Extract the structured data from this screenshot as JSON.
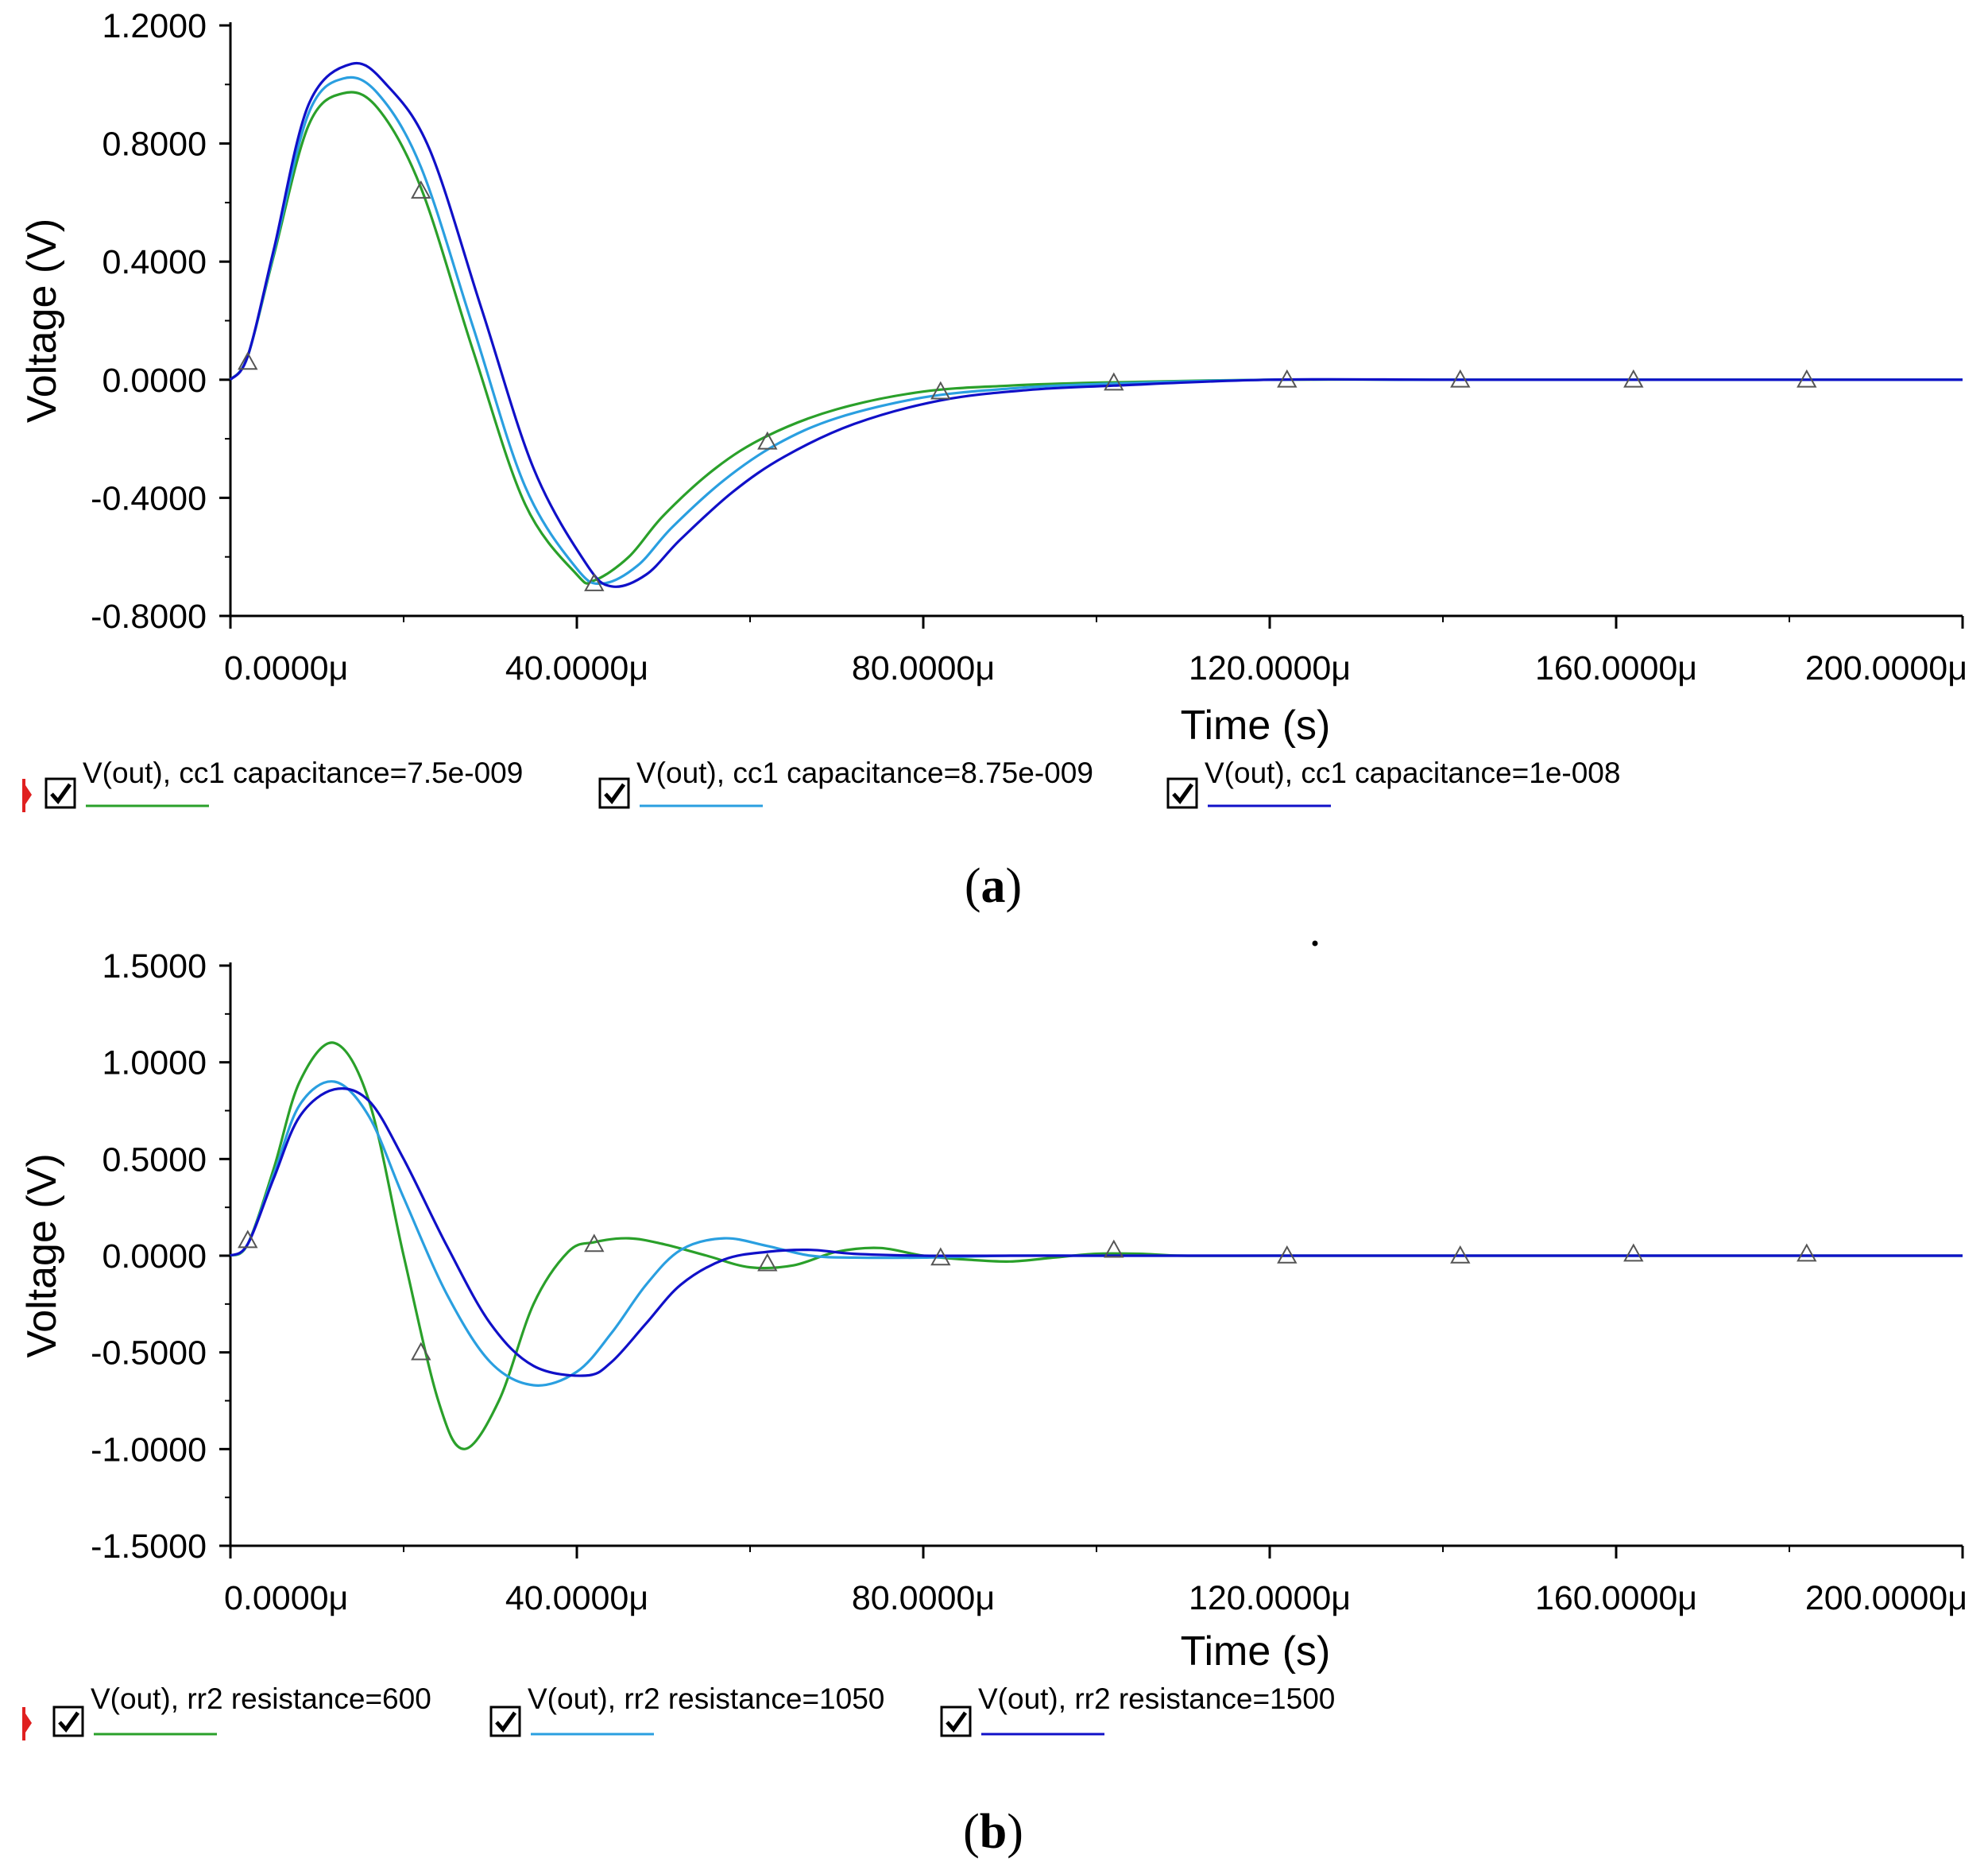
{
  "chart_data": [
    {
      "id": "a",
      "type": "line",
      "caption": "a",
      "xlabel": "Time (s)",
      "ylabel": "Voltage (V)",
      "xlim": [
        0,
        200
      ],
      "ylim": [
        -0.8,
        1.2
      ],
      "x_unit_suffix": "μ",
      "xticks": [
        0,
        40,
        80,
        120,
        160,
        200
      ],
      "xtick_labels": [
        "0.0000μ",
        "40.0000μ",
        "80.0000μ",
        "120.0000μ",
        "160.0000μ",
        "200.0000μ"
      ],
      "yticks": [
        1.2,
        0.8,
        0.4,
        0.0,
        -0.4,
        -0.8
      ],
      "ytick_labels": [
        "1.2000",
        "0.8000",
        "0.4000",
        "0.0000",
        "-0.4000",
        "-0.8000"
      ],
      "series": [
        {
          "name": "V(out), cc1 capacitance=7.5e-009",
          "color": "#2aa02a",
          "x": [
            0,
            2,
            5,
            9,
            13,
            17,
            22,
            28,
            34,
            40,
            42,
            46,
            50,
            56,
            62,
            70,
            80,
            90,
            100,
            120,
            140,
            160,
            180,
            200
          ],
          "y": [
            0,
            0.08,
            0.42,
            0.86,
            0.97,
            0.92,
            0.65,
            0.1,
            -0.42,
            -0.66,
            -0.68,
            -0.6,
            -0.46,
            -0.3,
            -0.19,
            -0.1,
            -0.04,
            -0.02,
            -0.01,
            0,
            0,
            0,
            0,
            0
          ]
        },
        {
          "name": "V(out), cc1 capacitance=8.75e-009",
          "color": "#2a9fe0",
          "x": [
            0,
            2,
            5,
            9,
            13,
            17,
            22,
            28,
            34,
            40,
            43,
            47,
            51,
            57,
            63,
            70,
            80,
            90,
            100,
            120,
            140,
            160,
            180,
            200
          ],
          "y": [
            0,
            0.08,
            0.43,
            0.9,
            1.02,
            0.97,
            0.72,
            0.18,
            -0.36,
            -0.64,
            -0.69,
            -0.63,
            -0.5,
            -0.34,
            -0.22,
            -0.13,
            -0.06,
            -0.03,
            -0.015,
            0,
            0,
            0,
            0,
            0
          ]
        },
        {
          "name": "V(out), cc1 capacitance=1e-008",
          "color": "#1010c8",
          "x": [
            0,
            2,
            5,
            9,
            14,
            18,
            23,
            29,
            35,
            41,
            44,
            48,
            52,
            58,
            64,
            72,
            82,
            92,
            102,
            120,
            140,
            160,
            180,
            200
          ],
          "y": [
            0,
            0.08,
            0.44,
            0.93,
            1.07,
            1.0,
            0.78,
            0.24,
            -0.3,
            -0.62,
            -0.7,
            -0.66,
            -0.54,
            -0.38,
            -0.26,
            -0.15,
            -0.07,
            -0.035,
            -0.02,
            0,
            0,
            0,
            0,
            0
          ]
        }
      ],
      "markers_x": [
        2,
        22,
        42,
        62,
        82,
        102,
        122,
        142,
        162,
        182
      ],
      "markers_y": [
        0.06,
        0.64,
        -0.69,
        -0.21,
        -0.04,
        -0.01,
        0,
        0,
        0,
        0
      ]
    },
    {
      "id": "b",
      "type": "line",
      "caption": "b",
      "xlabel": "Time (s)",
      "ylabel": "Voltage (V)",
      "xlim": [
        0,
        200
      ],
      "ylim": [
        -1.5,
        1.5
      ],
      "x_unit_suffix": "μ",
      "xticks": [
        0,
        40,
        80,
        120,
        160,
        200
      ],
      "xtick_labels": [
        "0.0000μ",
        "40.0000μ",
        "80.0000μ",
        "120.0000μ",
        "160.0000μ",
        "200.0000μ"
      ],
      "yticks": [
        1.5,
        1.0,
        0.5,
        0.0,
        -0.5,
        -1.0,
        -1.5
      ],
      "ytick_labels": [
        "1.5000",
        "1.0000",
        "0.5000",
        "0.0000",
        "-0.5000",
        "-1.0000",
        "-1.5000"
      ],
      "series": [
        {
          "name": "V(out), rr2 resistance=600",
          "color": "#2aa02a",
          "x": [
            0,
            2,
            5,
            8,
            12,
            16,
            20,
            24,
            27,
            31,
            35,
            39,
            42,
            46,
            50,
            55,
            60,
            65,
            70,
            75,
            80,
            85,
            90,
            95,
            100,
            105,
            110,
            120,
            140,
            160,
            180,
            200
          ],
          "y": [
            0,
            0.06,
            0.45,
            0.9,
            1.1,
            0.8,
            0.0,
            -0.75,
            -1.0,
            -0.75,
            -0.25,
            0.02,
            0.07,
            0.09,
            0.06,
            0.0,
            -0.06,
            -0.05,
            0.02,
            0.04,
            0.0,
            -0.02,
            -0.03,
            -0.01,
            0.01,
            0.01,
            0,
            0,
            0,
            0,
            0,
            0
          ]
        },
        {
          "name": "V(out), rr2 resistance=1050",
          "color": "#2a9fe0",
          "x": [
            0,
            2,
            5,
            8,
            12,
            16,
            20,
            25,
            30,
            35,
            40,
            44,
            48,
            52,
            57,
            62,
            67,
            72,
            80,
            90,
            100,
            120,
            140,
            160,
            180,
            200
          ],
          "y": [
            0,
            0.06,
            0.42,
            0.78,
            0.9,
            0.72,
            0.3,
            -0.2,
            -0.55,
            -0.67,
            -0.6,
            -0.4,
            -0.15,
            0.03,
            0.09,
            0.05,
            0.0,
            -0.01,
            -0.01,
            0,
            0,
            0,
            0,
            0,
            0,
            0
          ]
        },
        {
          "name": "V(out), rr2 resistance=1500",
          "color": "#1010c8",
          "x": [
            0,
            2,
            5,
            8,
            12,
            16,
            20,
            25,
            30,
            35,
            41,
            44,
            48,
            52,
            57,
            62,
            67,
            72,
            80,
            90,
            100,
            120,
            140,
            160,
            180,
            200
          ],
          "y": [
            0,
            0.06,
            0.4,
            0.72,
            0.86,
            0.8,
            0.5,
            0.05,
            -0.35,
            -0.57,
            -0.62,
            -0.55,
            -0.35,
            -0.15,
            -0.02,
            0.02,
            0.03,
            0.01,
            0.0,
            0,
            0,
            0,
            0,
            0,
            0,
            0
          ]
        }
      ],
      "markers_x": [
        2,
        22,
        42,
        62,
        82,
        102,
        122,
        142,
        162,
        182
      ],
      "markers_y": [
        0.08,
        -0.5,
        0.06,
        -0.04,
        -0.01,
        0.03,
        0,
        0,
        0.01,
        0.01
      ]
    }
  ]
}
